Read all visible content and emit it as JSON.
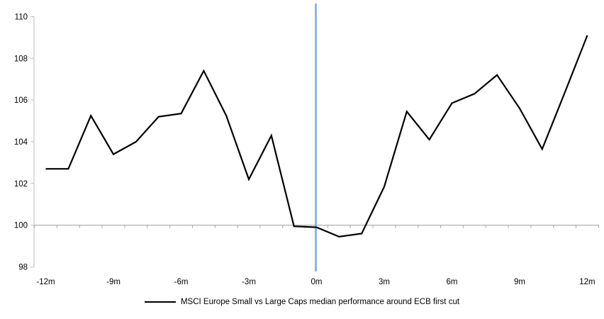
{
  "chart_data": {
    "type": "line",
    "title": "",
    "legend_position": "bottom-center",
    "grid": "off",
    "x_axis_crosses_at": 100,
    "ylim": [
      98,
      110
    ],
    "y_ticks": [
      110,
      108,
      106,
      104,
      102,
      100,
      98
    ],
    "x_tick_labels": [
      "-12m",
      "-9m",
      "-6m",
      "-3m",
      "0m",
      "3m",
      "6m",
      "9m",
      "12m"
    ],
    "x_tick_months": [
      -12,
      -9,
      -6,
      -3,
      0,
      3,
      6,
      9,
      12
    ],
    "x_months": [
      -12,
      -11,
      -10,
      -9,
      -8,
      -7,
      -6,
      -5,
      -4,
      -3,
      -2,
      -1,
      0,
      1,
      2,
      3,
      4,
      5,
      6,
      7,
      8,
      9,
      10,
      11,
      12
    ],
    "series": [
      {
        "name": "MSCI Europe Small vs Large Caps median performance around ECB first cut",
        "color": "#000000",
        "values": [
          102.7,
          102.7,
          105.25,
          103.4,
          104.0,
          105.2,
          105.35,
          107.4,
          105.25,
          102.2,
          104.3,
          99.95,
          99.9,
          99.45,
          99.6,
          101.85,
          105.45,
          104.1,
          105.85,
          106.3,
          107.2,
          105.6,
          103.65,
          106.35,
          109.1
        ]
      }
    ],
    "event_line": {
      "x_month": 0,
      "color": "#7DA7D8"
    },
    "colors": {
      "x_axis": "#A6A6A6",
      "y_axis": "#C8C8C8",
      "tick_label": "#000000",
      "background": "#FFFFFF"
    }
  },
  "legend": {
    "label": "MSCI Europe Small vs Large Caps median performance around ECB first cut"
  }
}
